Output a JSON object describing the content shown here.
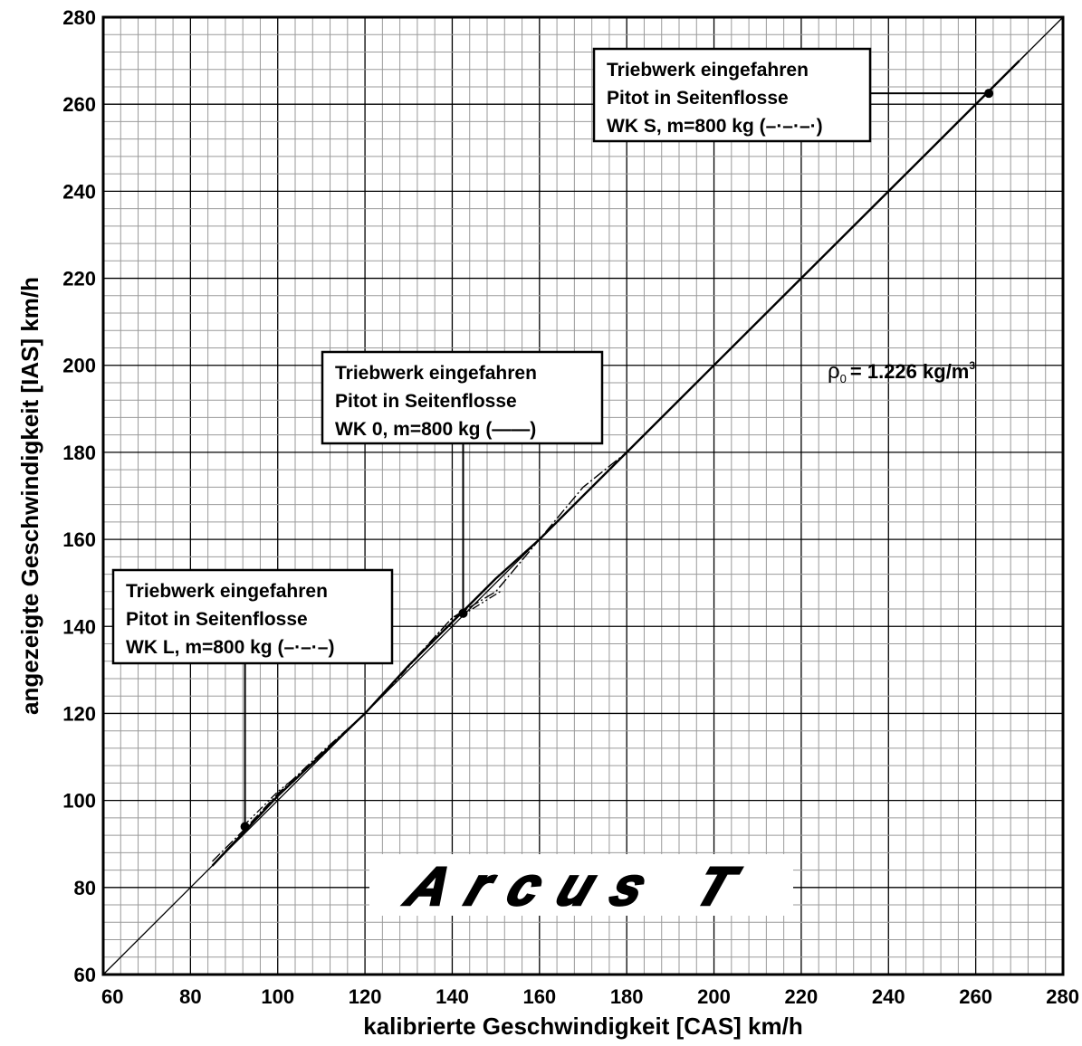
{
  "chart_data": {
    "type": "line",
    "title": "",
    "xlabel": "kalibrierte Geschwindigkeit [CAS] km/h",
    "ylabel": "angezeigte Geschwindigkeit [IAS] km/h",
    "xlim": [
      60,
      280
    ],
    "ylim": [
      60,
      280
    ],
    "grid": true,
    "x_ticks": [
      "60",
      "80",
      "100",
      "120",
      "140",
      "160",
      "180",
      "200",
      "220",
      "240",
      "260",
      "280"
    ],
    "y_ticks": [
      "60",
      "80",
      "100",
      "120",
      "140",
      "160",
      "180",
      "200",
      "220",
      "240",
      "260",
      "280"
    ],
    "series": [
      {
        "style": "solid-diagonal",
        "points": [
          [
            60,
            60
          ],
          [
            280,
            280
          ]
        ]
      },
      {
        "style": "solid",
        "points": [
          [
            85,
            85
          ],
          [
            100,
            101
          ],
          [
            120,
            120
          ],
          [
            130,
            131
          ],
          [
            140,
            141
          ],
          [
            150,
            151
          ],
          [
            160,
            160
          ],
          [
            180,
            180
          ],
          [
            200,
            200
          ],
          [
            220,
            220
          ],
          [
            240,
            240
          ],
          [
            262,
            262
          ],
          [
            270,
            270
          ]
        ]
      },
      {
        "style": "dash-dot",
        "points": [
          [
            85,
            86
          ],
          [
            93,
            94
          ],
          [
            100,
            101.5
          ],
          [
            110,
            111
          ],
          [
            120,
            120
          ],
          [
            130,
            131
          ],
          [
            140,
            142
          ],
          [
            150,
            148
          ],
          [
            160,
            160
          ],
          [
            170,
            172
          ],
          [
            180,
            180
          ],
          [
            200,
            200
          ],
          [
            220,
            220
          ],
          [
            240,
            240
          ],
          [
            263,
            263
          ],
          [
            272,
            272
          ]
        ]
      },
      {
        "style": "dash-dot-dot",
        "points": [
          [
            92,
            94
          ],
          [
            100,
            102
          ],
          [
            110,
            110
          ],
          [
            125,
            125
          ],
          [
            140,
            142
          ],
          [
            143,
            143
          ],
          [
            151,
            148
          ]
        ]
      }
    ],
    "markers": [
      [
        92.5,
        94
      ],
      [
        142.5,
        143
      ],
      [
        263,
        262.5
      ]
    ],
    "annotations": [
      {
        "lines": [
          "Triebwerk eingefahren",
          "Pitot in Seitenflosse",
          "WK S, m=800 kg (–·–·–·)"
        ],
        "marker": 2
      },
      {
        "lines": [
          "Triebwerk eingefahren",
          "Pitot in Seitenflosse",
          "WK 0, m=800 kg (——)"
        ],
        "marker": 1
      },
      {
        "lines": [
          "Triebwerk eingefahren",
          "Pitot in Seitenflosse",
          "WK L, m=800 kg (–·–·–)"
        ],
        "marker": 0
      }
    ],
    "density": {
      "symbol": "ρ",
      "subscript": "0",
      "text": "= 1.226 kg/m",
      "superscript": "3"
    },
    "logo": "Arcus T"
  }
}
